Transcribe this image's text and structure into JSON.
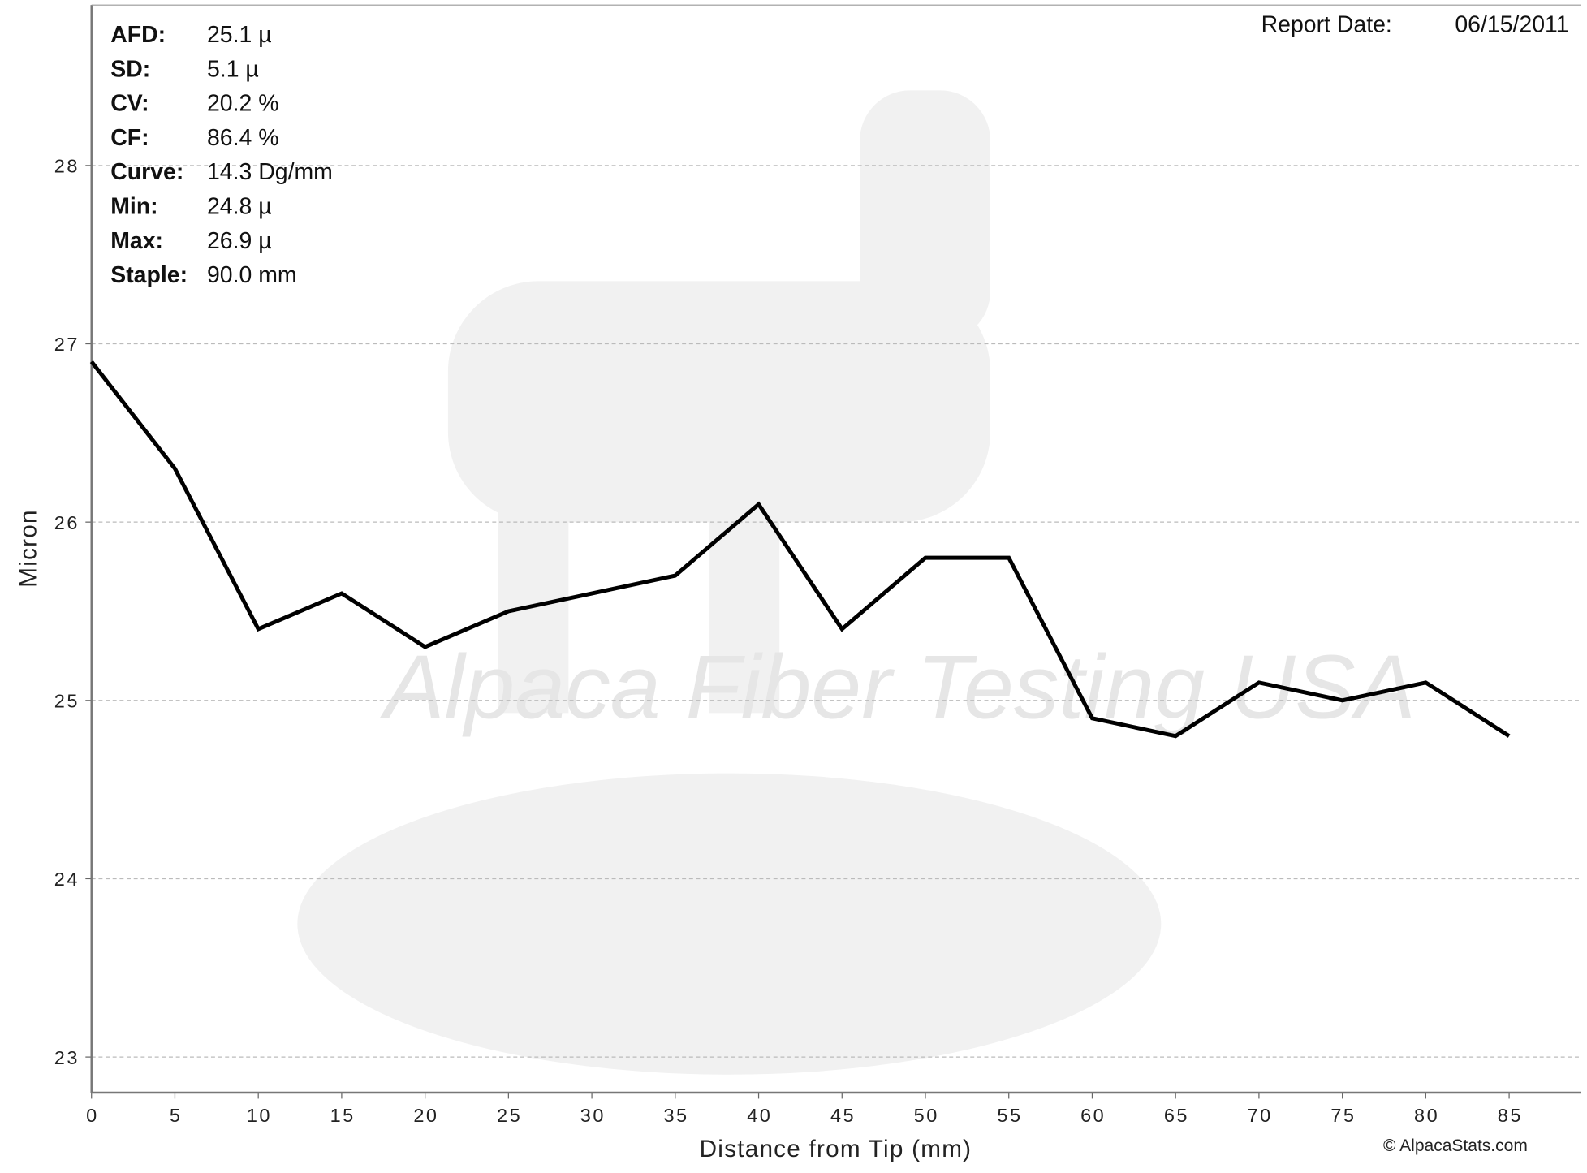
{
  "chart_data": {
    "type": "line",
    "x_label": "Distance from Tip (mm)",
    "y_label": "Micron",
    "x": [
      0,
      5,
      10,
      15,
      20,
      25,
      30,
      35,
      40,
      45,
      50,
      55,
      60,
      65,
      70,
      75,
      80,
      85
    ],
    "values": [
      26.9,
      26.3,
      25.4,
      25.6,
      25.3,
      25.5,
      25.6,
      25.7,
      26.1,
      25.4,
      25.8,
      25.8,
      24.9,
      24.8,
      25.1,
      25.0,
      25.1,
      24.8
    ],
    "color": "#000000",
    "xlim": [
      0,
      89.3
    ],
    "xticks": [
      0,
      5,
      10,
      15,
      20,
      25,
      30,
      35,
      40,
      45,
      50,
      55,
      60,
      65,
      70,
      75,
      80,
      85
    ],
    "ylim": [
      22.8,
      28.9
    ],
    "yticks": [
      23,
      24,
      25,
      26,
      27,
      28
    ],
    "grid": true,
    "stats": [
      {
        "label": "AFD:",
        "value": "25.1 µ"
      },
      {
        "label": "SD:",
        "value": "5.1 µ"
      },
      {
        "label": "CV:",
        "value": "20.2 %"
      },
      {
        "label": "CF:",
        "value": "86.4 %"
      },
      {
        "label": "Curve:",
        "value": "14.3 Dg/mm"
      },
      {
        "label": "Min:",
        "value": "24.8 µ"
      },
      {
        "label": "Max:",
        "value": "26.9 µ"
      },
      {
        "label": "Staple:",
        "value": "90.0 mm"
      }
    ],
    "report_label": "Report Date:",
    "report_date": "06/15/2011",
    "watermark": "Alpaca Fiber Testing USA",
    "credit": "© AlpacaStats.com"
  }
}
